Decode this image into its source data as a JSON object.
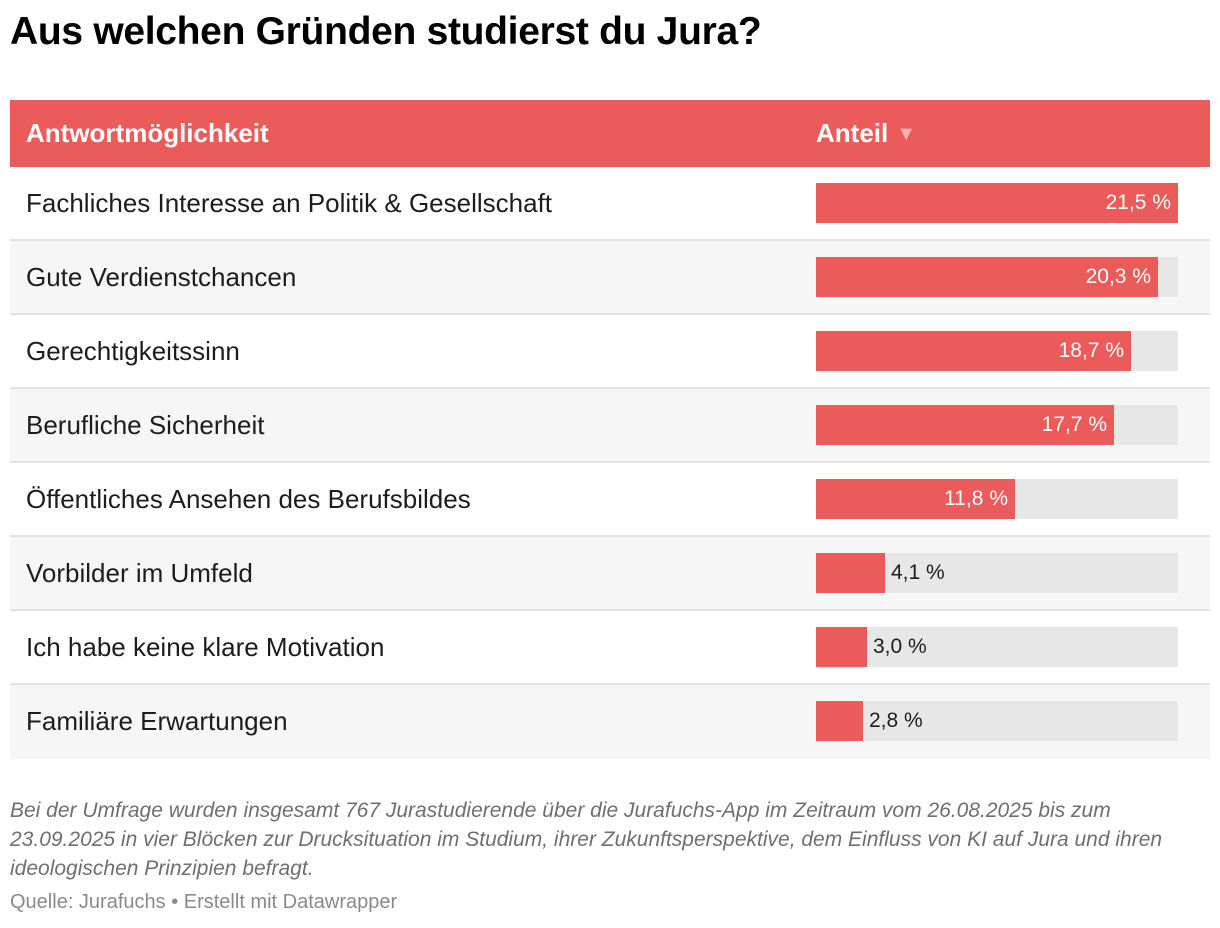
{
  "title": "Aus welchen Gründen studierst du Jura?",
  "table": {
    "header": {
      "col_answer": "Antwortmöglichkeit",
      "col_share": "Anteil",
      "sort_icon": "▼"
    }
  },
  "chart_data": {
    "type": "bar",
    "orientation": "horizontal",
    "xlim": [
      0,
      21.5
    ],
    "unit": "%",
    "categories": [
      "Fachliches Interesse an Politik & Gesellschaft",
      "Gute Verdienstchancen",
      "Gerechtigkeitssinn",
      "Berufliche Sicherheit",
      "Öffentliches Ansehen des Berufsbildes",
      "Vorbilder im Umfeld",
      "Ich habe keine klare Motivation",
      "Familiäre Erwartungen"
    ],
    "values": [
      21.5,
      20.3,
      18.7,
      17.7,
      11.8,
      4.1,
      3.0,
      2.8
    ],
    "value_labels": [
      "21,5 %",
      "20,3 %",
      "18,7 %",
      "17,7 %",
      "11,8 %",
      "4,1 %",
      "3,0 %",
      "2,8 %"
    ]
  },
  "colors": {
    "accent": "#eb5b5a",
    "track": "#e7e7e7",
    "row_alt": "#f6f6f6",
    "sort_icon": "#f6b2b1"
  },
  "footer": {
    "note": "Bei der Umfrage wurden insgesamt 767 Jurastudierende über die Jurafuchs-App im Zeitraum vom 26.08.2025 bis zum 23.09.2025 in vier Blöcken zur Drucksituation im Studium, ihrer Zukunftsperspektive, dem Einfluss von KI auf Jura und ihren ideologischen Prinzipien befragt.",
    "source": "Quelle: Jurafuchs • Erstellt mit Datawrapper"
  }
}
